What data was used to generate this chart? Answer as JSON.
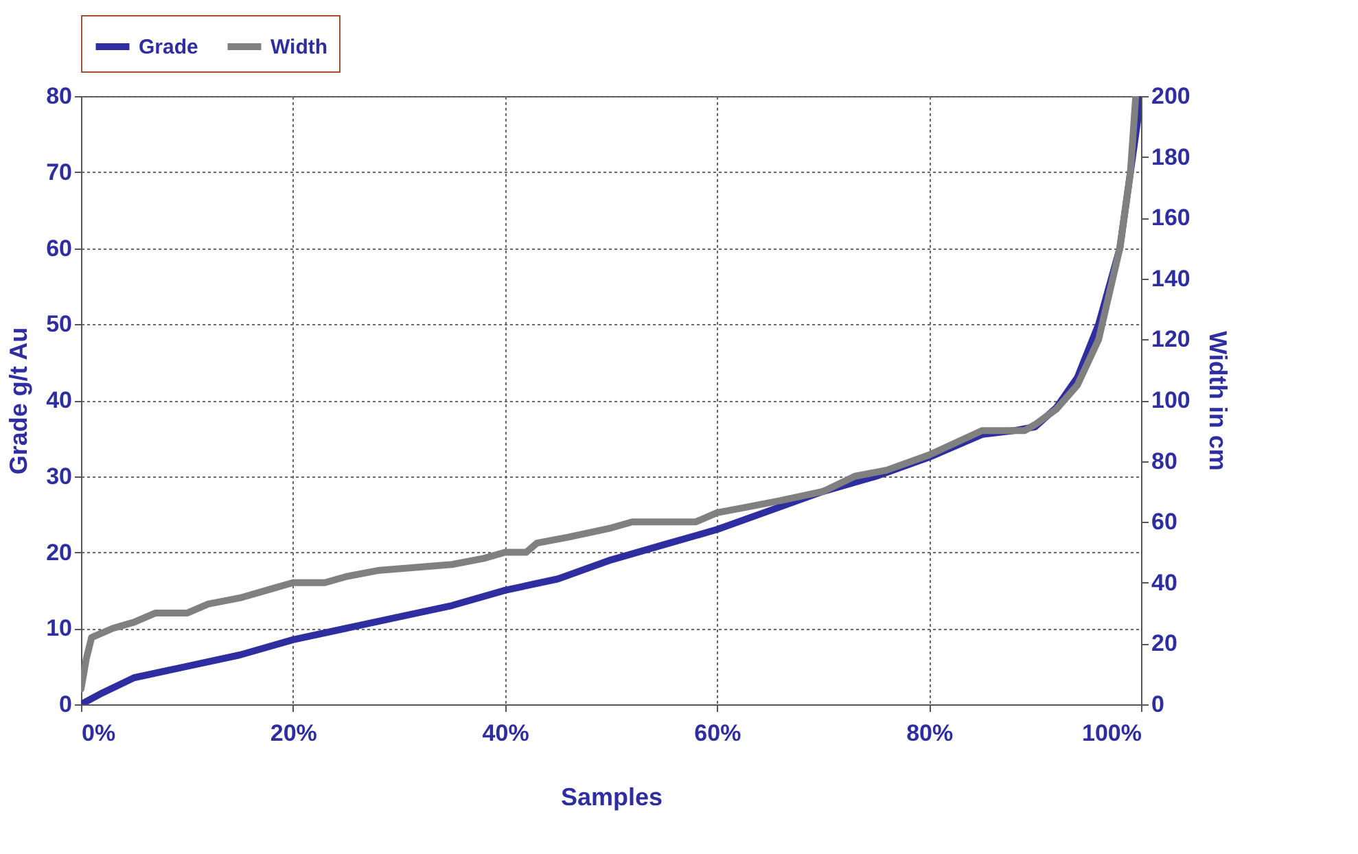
{
  "chart_data": {
    "type": "line",
    "xlabel": "Samples",
    "ylabel": "Grade g/t Au",
    "y2label": "Width in cm",
    "xlim": [
      0,
      100
    ],
    "xticks": [
      {
        "value": 0,
        "label": "0%"
      },
      {
        "value": 20,
        "label": "20%"
      },
      {
        "value": 40,
        "label": "40%"
      },
      {
        "value": 60,
        "label": "60%"
      },
      {
        "value": 80,
        "label": "80%"
      },
      {
        "value": 100,
        "label": "100%"
      }
    ],
    "ylim": [
      0,
      80
    ],
    "yticks": [
      0,
      10,
      20,
      30,
      40,
      50,
      60,
      70,
      80
    ],
    "y2lim": [
      0,
      200
    ],
    "y2ticks": [
      0,
      20,
      40,
      60,
      80,
      100,
      120,
      140,
      160,
      180,
      200
    ],
    "grid": true,
    "legend": "top",
    "marker": "none",
    "line_style": "solid",
    "series": [
      {
        "name": "Grade",
        "color": "#2e2ea0",
        "x": [
          0,
          2,
          5,
          10,
          15,
          20,
          25,
          30,
          35,
          40,
          45,
          50,
          55,
          60,
          65,
          70,
          75,
          80,
          85,
          88,
          90,
          92,
          94,
          96,
          97,
          98,
          99,
          100
        ],
        "values": [
          0,
          1.5,
          3.5,
          5,
          6.5,
          8.5,
          10,
          11.5,
          13,
          15,
          16.5,
          19,
          21,
          23,
          25.5,
          28,
          30,
          32.5,
          35.5,
          36,
          36.5,
          39,
          43,
          50,
          55,
          60,
          70,
          80
        ]
      },
      {
        "name": "Width",
        "color": "#808080",
        "axis": "y2",
        "x": [
          0,
          0.5,
          1,
          3,
          5,
          7,
          10,
          12,
          15,
          18,
          20,
          23,
          25,
          28,
          35,
          38,
          40,
          42,
          43,
          46,
          50,
          52,
          58,
          60,
          63,
          66,
          70,
          73,
          76,
          80,
          85,
          89,
          90,
          92,
          94,
          96,
          97,
          98,
          99,
          99.5
        ],
        "values": [
          5,
          15,
          22,
          25,
          27,
          30,
          30,
          33,
          35,
          38,
          40,
          40,
          42,
          44,
          46,
          48,
          50,
          50,
          53,
          55,
          58,
          60,
          60,
          63,
          65,
          67,
          70,
          75,
          77,
          82,
          90,
          90,
          92,
          97,
          105,
          120,
          135,
          150,
          175,
          200
        ]
      }
    ]
  }
}
